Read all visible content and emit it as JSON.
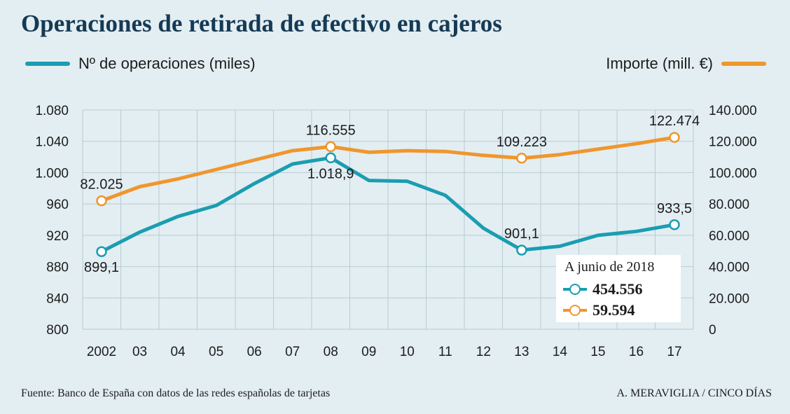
{
  "colors": {
    "operaciones": "#1a9db1",
    "importe": "#f0962d",
    "grid": "#b8cbd3",
    "background": "#e3eef2"
  },
  "footer": {
    "source": "Fuente: Banco de España con datos de las redes españolas de tarjetas",
    "credit": "A. MERAVIGLIA / CINCO DÍAS"
  },
  "chart_data": {
    "type": "line",
    "title": "Operaciones de retirada de efectivo en cajeros",
    "categories": [
      "2002",
      "03",
      "04",
      "05",
      "06",
      "07",
      "08",
      "09",
      "10",
      "11",
      "12",
      "13",
      "14",
      "15",
      "16",
      "17"
    ],
    "series": [
      {
        "name": "Nº de operaciones (miles)",
        "axis": "left",
        "values": [
          899.1,
          924,
          944,
          958,
          986,
          1011,
          1018.9,
          990,
          989,
          971,
          929,
          901.1,
          906,
          920,
          925,
          933.5
        ]
      },
      {
        "name": "Importe (mill. €)",
        "axis": "right",
        "values": [
          82025,
          91000,
          96000,
          102000,
          108000,
          114000,
          116555,
          113000,
          114000,
          113500,
          111000,
          109223,
          111500,
          115000,
          118500,
          122474
        ]
      }
    ],
    "left_axis": {
      "ylim": [
        800,
        1080
      ],
      "ticks": [
        "800",
        "840",
        "880",
        "920",
        "960",
        "1.000",
        "1.040",
        "1.080"
      ],
      "tick_values": [
        800,
        840,
        880,
        920,
        960,
        1000,
        1040,
        1080
      ]
    },
    "right_axis": {
      "ylim": [
        0,
        140000
      ],
      "ticks": [
        "0",
        "20.000",
        "40.000",
        "60.000",
        "80.000",
        "100.000",
        "120.000",
        "140.000"
      ],
      "tick_values": [
        0,
        20000,
        40000,
        60000,
        80000,
        100000,
        120000,
        140000
      ]
    },
    "annotations": [
      {
        "series": 0,
        "index": 0,
        "text": "899,1",
        "place": "below"
      },
      {
        "series": 0,
        "index": 6,
        "text": "1.018,9",
        "place": "below"
      },
      {
        "series": 0,
        "index": 11,
        "text": "901,1",
        "place": "above"
      },
      {
        "series": 0,
        "index": 15,
        "text": "933,5",
        "place": "above"
      },
      {
        "series": 1,
        "index": 0,
        "text": "82.025",
        "place": "above"
      },
      {
        "series": 1,
        "index": 6,
        "text": "116.555",
        "place": "above"
      },
      {
        "series": 1,
        "index": 11,
        "text": "109.223",
        "place": "above"
      },
      {
        "series": 1,
        "index": 15,
        "text": "122.474",
        "place": "above"
      }
    ],
    "inset": {
      "title": "A junio de 2018",
      "operaciones_value": "454.556",
      "importe_value": "59.594"
    },
    "grid": true
  }
}
